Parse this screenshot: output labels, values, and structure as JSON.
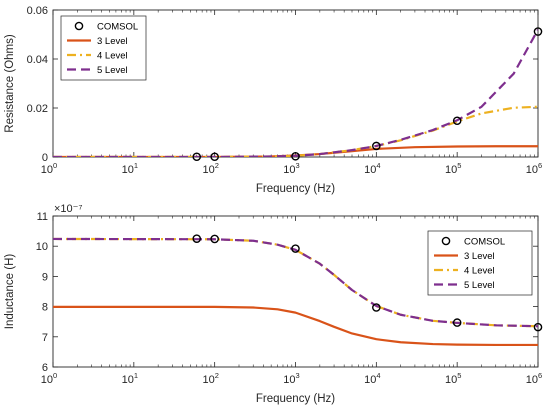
{
  "chart_data": [
    {
      "type": "line",
      "xlabel": "Frequency (Hz)",
      "ylabel": "Resistance (Ohms)",
      "xscale": "log",
      "xlim": [
        1,
        1000000
      ],
      "ylim": [
        0,
        0.06
      ],
      "grid": false,
      "legend_position": "top-left",
      "x_ticks": [
        {
          "value": 1,
          "base": "10",
          "exp": "0"
        },
        {
          "value": 10,
          "base": "10",
          "exp": "1"
        },
        {
          "value": 100,
          "base": "10",
          "exp": "2"
        },
        {
          "value": 1000,
          "base": "10",
          "exp": "3"
        },
        {
          "value": 10000,
          "base": "10",
          "exp": "4"
        },
        {
          "value": 100000,
          "base": "10",
          "exp": "5"
        },
        {
          "value": 1000000,
          "base": "10",
          "exp": "6"
        }
      ],
      "y_ticks": [
        {
          "value": 0,
          "label": "0"
        },
        {
          "value": 0.02,
          "label": "0.02"
        },
        {
          "value": 0.04,
          "label": "0.04"
        },
        {
          "value": 0.06,
          "label": "0.06"
        }
      ],
      "series": [
        {
          "name": "COMSOL",
          "style": "markers",
          "color": "#000000",
          "x": [
            60,
            100,
            1000,
            10000,
            100000,
            1000000
          ],
          "y": [
            0.0001,
            0.0001,
            0.0003,
            0.0045,
            0.0148,
            0.0512
          ]
        },
        {
          "name": "3 Level",
          "style": "solid",
          "color": "#d95319",
          "x": [
            1,
            100,
            500,
            1000,
            2000,
            5000,
            10000,
            30000,
            100000,
            300000,
            1000000
          ],
          "y": [
            0,
            0,
            0.0002,
            0.0006,
            0.0012,
            0.0024,
            0.0033,
            0.004,
            0.0043,
            0.0044,
            0.0044
          ]
        },
        {
          "name": "4 Level",
          "style": "dashdot",
          "color": "#edb120",
          "x": [
            1,
            100,
            500,
            1000,
            2000,
            5000,
            10000,
            20000,
            50000,
            100000,
            200000,
            500000,
            1000000
          ],
          "y": [
            0,
            0,
            0.0002,
            0.0005,
            0.0012,
            0.0028,
            0.0045,
            0.0068,
            0.0108,
            0.0145,
            0.0178,
            0.0201,
            0.0205
          ]
        },
        {
          "name": "5 Level",
          "style": "dashed",
          "color": "#7e2f8e",
          "x": [
            1,
            100,
            500,
            1000,
            2000,
            5000,
            10000,
            20000,
            50000,
            100000,
            200000,
            500000,
            1000000
          ],
          "y": [
            0,
            0,
            0.0002,
            0.0005,
            0.0012,
            0.0028,
            0.0045,
            0.007,
            0.011,
            0.015,
            0.0205,
            0.034,
            0.052
          ]
        }
      ]
    },
    {
      "type": "line",
      "xlabel": "Frequency (Hz)",
      "ylabel": "Inductance (H)",
      "xscale": "log",
      "xlim": [
        1,
        1000000
      ],
      "ylim": [
        6,
        11
      ],
      "y_multiplier": "×10⁻⁷",
      "grid": false,
      "legend_position": "top-right",
      "x_ticks": [
        {
          "value": 1,
          "base": "10",
          "exp": "0"
        },
        {
          "value": 10,
          "base": "10",
          "exp": "1"
        },
        {
          "value": 100,
          "base": "10",
          "exp": "2"
        },
        {
          "value": 1000,
          "base": "10",
          "exp": "3"
        },
        {
          "value": 10000,
          "base": "10",
          "exp": "4"
        },
        {
          "value": 100000,
          "base": "10",
          "exp": "5"
        },
        {
          "value": 1000000,
          "base": "10",
          "exp": "6"
        }
      ],
      "y_ticks": [
        {
          "value": 6,
          "label": "6"
        },
        {
          "value": 7,
          "label": "7"
        },
        {
          "value": 8,
          "label": "8"
        },
        {
          "value": 9,
          "label": "9"
        },
        {
          "value": 10,
          "label": "10"
        },
        {
          "value": 11,
          "label": "11"
        }
      ],
      "series": [
        {
          "name": "COMSOL",
          "style": "markers",
          "color": "#000000",
          "x": [
            60,
            100,
            1000,
            10000,
            100000,
            1000000
          ],
          "y": [
            10.25,
            10.24,
            9.92,
            7.97,
            7.47,
            7.32
          ]
        },
        {
          "name": "3 Level",
          "style": "solid",
          "color": "#d95319",
          "x": [
            1,
            100,
            300,
            600,
            1000,
            2000,
            3000,
            5000,
            10000,
            20000,
            50000,
            100000,
            300000,
            1000000
          ],
          "y": [
            7.99,
            7.99,
            7.97,
            7.91,
            7.8,
            7.52,
            7.33,
            7.11,
            6.92,
            6.82,
            6.76,
            6.74,
            6.73,
            6.73
          ]
        },
        {
          "name": "4 Level",
          "style": "dashdot",
          "color": "#edb120",
          "x": [
            1,
            100,
            300,
            600,
            1000,
            2000,
            3000,
            5000,
            10000,
            20000,
            50000,
            100000,
            300000,
            1000000
          ],
          "y": [
            10.24,
            10.23,
            10.18,
            10.05,
            9.88,
            9.42,
            9.05,
            8.55,
            8.02,
            7.73,
            7.53,
            7.46,
            7.38,
            7.35
          ]
        },
        {
          "name": "5 Level",
          "style": "dashed",
          "color": "#7e2f8e",
          "x": [
            1,
            100,
            300,
            600,
            1000,
            2000,
            3000,
            5000,
            10000,
            20000,
            50000,
            100000,
            300000,
            1000000
          ],
          "y": [
            10.24,
            10.23,
            10.18,
            10.05,
            9.88,
            9.42,
            9.05,
            8.55,
            8.02,
            7.73,
            7.53,
            7.46,
            7.38,
            7.35
          ]
        }
      ]
    }
  ]
}
